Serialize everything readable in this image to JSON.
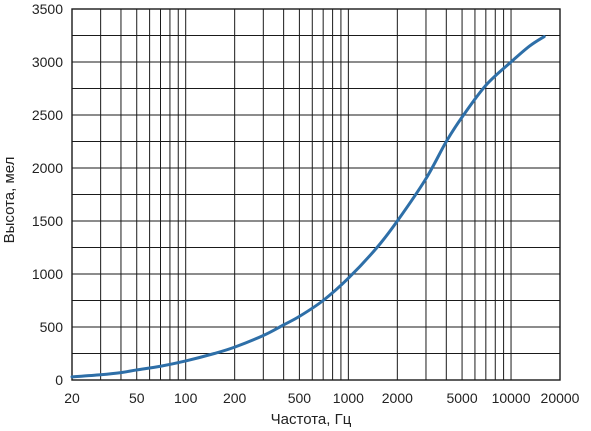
{
  "chart_data": {
    "type": "line",
    "xlabel": "Частота, Гц",
    "ylabel": "Высота, мел",
    "xscale": "log",
    "xlim": [
      20,
      20000
    ],
    "ylim": [
      0,
      3500
    ],
    "grid": true,
    "line_color": "#2e6fa8",
    "x_ticks": [
      {
        "value": 20,
        "label": "20"
      },
      {
        "value": 50,
        "label": "50"
      },
      {
        "value": 100,
        "label": "100"
      },
      {
        "value": 200,
        "label": "200"
      },
      {
        "value": 500,
        "label": "500"
      },
      {
        "value": 1000,
        "label": "1000"
      },
      {
        "value": 2000,
        "label": "2000"
      },
      {
        "value": 5000,
        "label": "5000"
      },
      {
        "value": 10000,
        "label": "10000"
      },
      {
        "value": 20000,
        "label": "20000"
      }
    ],
    "y_ticks": [
      {
        "value": 0,
        "label": "0"
      },
      {
        "value": 500,
        "label": "500"
      },
      {
        "value": 1000,
        "label": "1000"
      },
      {
        "value": 1500,
        "label": "1500"
      },
      {
        "value": 2000,
        "label": "2000"
      },
      {
        "value": 2500,
        "label": "2500"
      },
      {
        "value": 3000,
        "label": "3000"
      },
      {
        "value": 3500,
        "label": "3500"
      }
    ],
    "x_grid": [
      20,
      30,
      40,
      50,
      60,
      70,
      80,
      90,
      100,
      200,
      300,
      400,
      500,
      600,
      700,
      800,
      900,
      1000,
      2000,
      3000,
      4000,
      5000,
      6000,
      7000,
      8000,
      9000,
      10000,
      20000
    ],
    "y_grid": [
      0,
      250,
      500,
      750,
      1000,
      1250,
      1500,
      1750,
      2000,
      2250,
      2500,
      2750,
      3000,
      3250,
      3500
    ],
    "series": [
      {
        "x": [
          20,
          30,
          40,
          50,
          70,
          100,
          150,
          200,
          300,
          400,
          500,
          700,
          1000,
          1500,
          2000,
          3000,
          4000,
          5000,
          7000,
          10000,
          13000,
          16000
        ],
        "y": [
          30,
          50,
          70,
          95,
          130,
          180,
          250,
          310,
          420,
          520,
          600,
          750,
          960,
          1250,
          1500,
          1900,
          2250,
          2480,
          2780,
          3000,
          3150,
          3240
        ]
      }
    ]
  }
}
